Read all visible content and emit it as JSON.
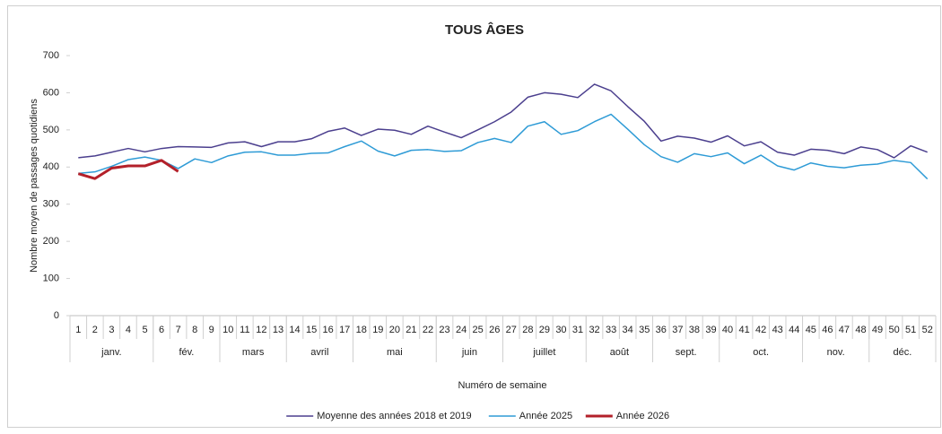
{
  "chart_data": {
    "type": "line",
    "title": "TOUS ÂGES",
    "y_label": "Nombre moyen de passages quotidiens",
    "x_label": "Numéro de semaine",
    "categories": [
      "1",
      "2",
      "3",
      "4",
      "5",
      "6",
      "7",
      "8",
      "9",
      "10",
      "11",
      "12",
      "13",
      "14",
      "15",
      "16",
      "17",
      "18",
      "19",
      "20",
      "21",
      "22",
      "23",
      "24",
      "25",
      "26",
      "27",
      "28",
      "29",
      "30",
      "31",
      "32",
      "33",
      "34",
      "35",
      "36",
      "37",
      "38",
      "39",
      "40",
      "41",
      "42",
      "43",
      "44",
      "45",
      "46",
      "47",
      "48",
      "49",
      "50",
      "51",
      "52"
    ],
    "month_groups": [
      {
        "label": "janv.",
        "weeks": 5
      },
      {
        "label": "fév.",
        "weeks": 4
      },
      {
        "label": "mars",
        "weeks": 4
      },
      {
        "label": "avril",
        "weeks": 4
      },
      {
        "label": "mai",
        "weeks": 5
      },
      {
        "label": "juin",
        "weeks": 4
      },
      {
        "label": "juillet",
        "weeks": 5
      },
      {
        "label": "août",
        "weeks": 4
      },
      {
        "label": "sept.",
        "weeks": 4
      },
      {
        "label": "oct.",
        "weeks": 5
      },
      {
        "label": "nov.",
        "weeks": 4
      },
      {
        "label": "déc.",
        "weeks": 4
      }
    ],
    "series": [
      {
        "name": "Moyenne des années 2018 et 2019",
        "color": "#4b3f8e",
        "width": 1.5,
        "values": [
          425,
          430,
          440,
          450,
          441,
          450,
          455,
          454,
          453,
          465,
          468,
          455,
          468,
          468,
          476,
          496,
          505,
          485,
          502,
          499,
          488,
          510,
          494,
          479,
          500,
          522,
          548,
          588,
          600,
          596,
          587,
          623,
          605,
          563,
          523,
          470,
          483,
          478,
          467,
          484,
          457,
          468,
          440,
          432,
          448,
          445,
          436,
          454,
          447,
          425,
          457,
          440
        ]
      },
      {
        "name": "Année 2025",
        "color": "#2e9bd6",
        "width": 1.5,
        "values": [
          383,
          387,
          402,
          420,
          427,
          418,
          396,
          422,
          412,
          430,
          440,
          441,
          432,
          432,
          437,
          438,
          455,
          470,
          443,
          430,
          445,
          447,
          442,
          444,
          466,
          477,
          466,
          510,
          522,
          488,
          498,
          522,
          542,
          502,
          460,
          428,
          413,
          436,
          428,
          438,
          409,
          432,
          403,
          392,
          411,
          402,
          398,
          405,
          408,
          418,
          412,
          368
        ]
      },
      {
        "name": "Année 2026",
        "color": "#b3202a",
        "width": 3,
        "values": [
          382,
          369,
          397,
          403,
          403,
          418,
          388,
          null,
          null,
          null,
          null,
          null,
          null,
          null,
          null,
          null,
          null,
          null,
          null,
          null,
          null,
          null,
          null,
          null,
          null,
          null,
          null,
          null,
          null,
          null,
          null,
          null,
          null,
          null,
          null,
          null,
          null,
          null,
          null,
          null,
          null,
          null,
          null,
          null,
          null,
          null,
          null,
          null,
          null,
          null,
          null,
          null
        ]
      }
    ],
    "ylim": [
      0,
      700
    ],
    "yticks": [
      0,
      100,
      200,
      300,
      400,
      500,
      600,
      700
    ],
    "grid": false,
    "legend": "bottom"
  }
}
